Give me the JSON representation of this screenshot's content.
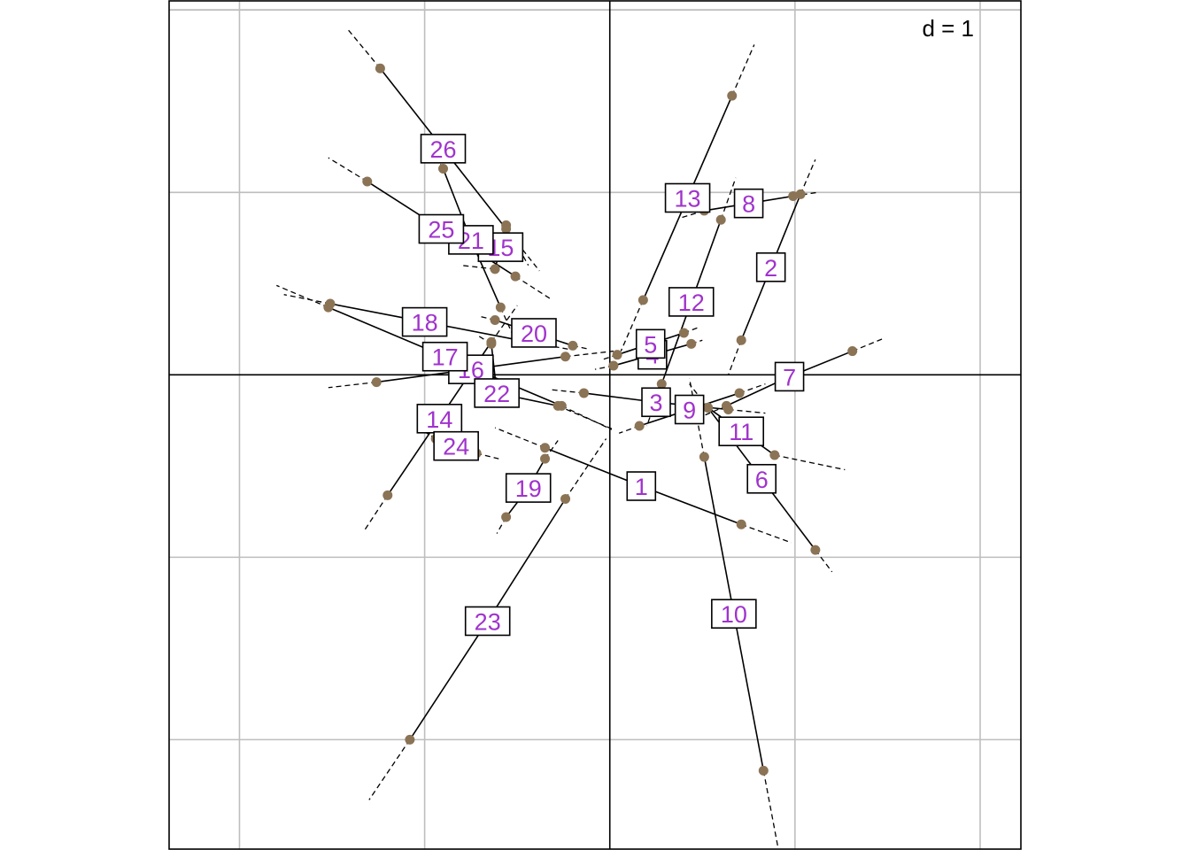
{
  "chart_data": {
    "type": "scatter",
    "scale_label": "d = 1",
    "xlim": [
      -2.38,
      2.22
    ],
    "ylim": [
      -2.6,
      2.05
    ],
    "grid_spacing": 1,
    "grid": true,
    "colors": {
      "point": "#8b7355",
      "label_text": "#a033cc",
      "grid": "#bebebe",
      "line": "#000000"
    },
    "items": [
      {
        "label": "1",
        "center": [
          0.17,
          -0.61
        ],
        "ends": [
          [
            -0.35,
            -0.4
          ],
          [
            0.71,
            -0.82
          ]
        ],
        "tails": [
          [
            -0.62,
            -0.29
          ],
          [
            0.98,
            -0.92
          ]
        ]
      },
      {
        "label": "2",
        "center": [
          0.87,
          0.59
        ],
        "ends": [
          [
            0.71,
            0.19
          ],
          [
            1.03,
            0.99
          ]
        ],
        "tails": [
          [
            0.64,
            0.0
          ],
          [
            1.11,
            1.18
          ]
        ]
      },
      {
        "label": "3",
        "center": [
          0.25,
          -0.15
        ],
        "ends": [
          [
            -0.14,
            -0.1
          ],
          [
            0.64,
            -0.19
          ]
        ],
        "tails": [
          [
            -0.33,
            -0.08
          ],
          [
            0.84,
            -0.21
          ]
        ]
      },
      {
        "label": "4",
        "center": [
          0.23,
          0.11
        ],
        "ends": [
          [
            0.02,
            0.05
          ],
          [
            0.44,
            0.17
          ]
        ],
        "tails": [
          [
            -0.08,
            0.03
          ],
          [
            0.5,
            0.19
          ]
        ]
      },
      {
        "label": "5",
        "center": [
          0.22,
          0.17
        ],
        "ends": [
          [
            0.04,
            0.11
          ],
          [
            0.4,
            0.23
          ]
        ],
        "tails": [
          [
            -0.05,
            0.08
          ],
          [
            0.48,
            0.26
          ]
        ]
      },
      {
        "label": "6",
        "center": [
          0.82,
          -0.57
        ],
        "ends": [
          [
            0.53,
            -0.18
          ],
          [
            1.11,
            -0.96
          ]
        ],
        "tails": [
          [
            0.43,
            -0.05
          ],
          [
            1.2,
            -1.08
          ]
        ]
      },
      {
        "label": "7",
        "center": [
          0.97,
          -0.01
        ],
        "ends": [
          [
            0.63,
            -0.17
          ],
          [
            1.31,
            0.13
          ]
        ],
        "tails": [
          [
            0.47,
            -0.24
          ],
          [
            1.48,
            0.2
          ]
        ]
      },
      {
        "label": "8",
        "center": [
          0.75,
          0.94
        ],
        "ends": [
          [
            0.51,
            0.9
          ],
          [
            0.99,
            0.98
          ]
        ],
        "tails": [
          [
            0.38,
            0.86
          ],
          [
            1.12,
            1.0
          ]
        ]
      },
      {
        "label": "9",
        "center": [
          0.43,
          -0.19
        ],
        "ends": [
          [
            0.16,
            -0.28
          ],
          [
            0.7,
            -0.1
          ]
        ],
        "tails": [
          [
            0.05,
            -0.32
          ],
          [
            0.84,
            -0.05
          ]
        ]
      },
      {
        "label": "10",
        "center": [
          0.67,
          -1.31
        ],
        "ends": [
          [
            0.51,
            -0.45
          ],
          [
            0.83,
            -2.17
          ]
        ],
        "tails": [
          [
            0.43,
            -0.02
          ],
          [
            0.91,
            -2.6
          ]
        ]
      },
      {
        "label": "11",
        "center": [
          0.71,
          -0.31
        ],
        "ends": [
          [
            0.53,
            -0.18
          ],
          [
            0.89,
            -0.44
          ]
        ],
        "tails": [
          [
            0.43,
            -0.12
          ],
          [
            1.27,
            -0.52
          ]
        ]
      },
      {
        "label": "12",
        "center": [
          0.44,
          0.4
        ],
        "ends": [
          [
            0.28,
            -0.05
          ],
          [
            0.6,
            0.85
          ]
        ],
        "tails": [
          [
            0.2,
            -0.28
          ],
          [
            0.68,
            1.08
          ]
        ]
      },
      {
        "label": "13",
        "center": [
          0.42,
          0.97
        ],
        "ends": [
          [
            0.18,
            0.41
          ],
          [
            0.66,
            1.53
          ]
        ],
        "tails": [
          [
            0.06,
            0.13
          ],
          [
            0.78,
            1.81
          ]
        ]
      },
      {
        "label": "14",
        "center": [
          -0.92,
          -0.24
        ],
        "ends": [
          [
            -1.2,
            -0.66
          ],
          [
            -0.64,
            0.18
          ]
        ],
        "tails": [
          [
            -1.33,
            -0.86
          ],
          [
            -0.5,
            0.38
          ]
        ]
      },
      {
        "label": "15",
        "center": [
          -0.59,
          0.7
        ],
        "ends": [
          [
            -0.56,
            0.82
          ],
          [
            -0.62,
            0.58
          ]
        ],
        "tails": [
          [
            -0.44,
            0.6
          ],
          [
            -0.8,
            0.6
          ]
        ]
      },
      {
        "label": "16",
        "center": [
          -0.75,
          0.03
        ],
        "ends": [
          [
            -1.26,
            -0.04
          ],
          [
            -0.24,
            0.1
          ]
        ],
        "tails": [
          [
            -1.52,
            -0.07
          ],
          [
            0.02,
            0.13
          ]
        ]
      },
      {
        "label": "17",
        "center": [
          -0.89,
          0.1
        ],
        "ends": [
          [
            -1.52,
            0.37
          ],
          [
            -0.26,
            -0.17
          ]
        ],
        "tails": [
          [
            -1.8,
            0.49
          ],
          [
            0.01,
            -0.3
          ]
        ]
      },
      {
        "label": "18",
        "center": [
          -1.0,
          0.29
        ],
        "ends": [
          [
            -1.51,
            0.39
          ],
          [
            -0.49,
            0.19
          ]
        ],
        "tails": [
          [
            -1.76,
            0.44
          ],
          [
            -0.22,
            0.14
          ]
        ]
      },
      {
        "label": "19",
        "center": [
          -0.44,
          -0.62
        ],
        "ends": [
          [
            -0.56,
            -0.78
          ],
          [
            -0.35,
            -0.46
          ]
        ],
        "tails": [
          [
            -0.61,
            -0.87
          ],
          [
            -0.28,
            -0.36
          ]
        ]
      },
      {
        "label": "20",
        "center": [
          -0.41,
          0.23
        ],
        "ends": [
          [
            -0.62,
            0.3
          ],
          [
            -0.2,
            0.16
          ]
        ],
        "tails": [
          [
            -0.7,
            0.32
          ],
          [
            -0.11,
            0.14
          ]
        ]
      },
      {
        "label": "21",
        "center": [
          -0.75,
          0.74
        ],
        "ends": [
          [
            -0.9,
            1.13
          ],
          [
            -0.59,
            0.37
          ]
        ],
        "tails": [
          [
            -0.98,
            1.27
          ],
          [
            -0.52,
            0.21
          ]
        ]
      },
      {
        "label": "22",
        "center": [
          -0.61,
          -0.1
        ],
        "ends": [
          [
            -0.64,
            0.17
          ],
          [
            -0.28,
            -0.17
          ]
        ],
        "tails": [
          [
            -0.72,
            0.22
          ],
          [
            0.02,
            -0.3
          ]
        ]
      },
      {
        "label": "23",
        "center": [
          -0.66,
          -1.35
        ],
        "ends": [
          [
            -1.08,
            -2.0
          ],
          [
            -0.24,
            -0.68
          ]
        ],
        "tails": [
          [
            -1.3,
            -2.33
          ],
          [
            -0.02,
            -0.35
          ]
        ]
      },
      {
        "label": "24",
        "center": [
          -0.83,
          -0.39
        ],
        "ends": [
          [
            -0.94,
            -0.35
          ],
          [
            -0.72,
            -0.43
          ]
        ],
        "tails": [
          [
            -1.02,
            -0.3
          ],
          [
            -0.6,
            -0.46
          ]
        ]
      },
      {
        "label": "25",
        "center": [
          -0.91,
          0.8
        ],
        "ends": [
          [
            -1.31,
            1.06
          ],
          [
            -0.51,
            0.54
          ]
        ],
        "tails": [
          [
            -1.52,
            1.19
          ],
          [
            -0.31,
            0.41
          ]
        ]
      },
      {
        "label": "26",
        "center": [
          -0.9,
          1.24
        ],
        "ends": [
          [
            -1.24,
            1.68
          ],
          [
            -0.56,
            0.8
          ]
        ],
        "tails": [
          [
            -1.42,
            1.9
          ],
          [
            -0.38,
            0.57
          ]
        ]
      }
    ]
  }
}
